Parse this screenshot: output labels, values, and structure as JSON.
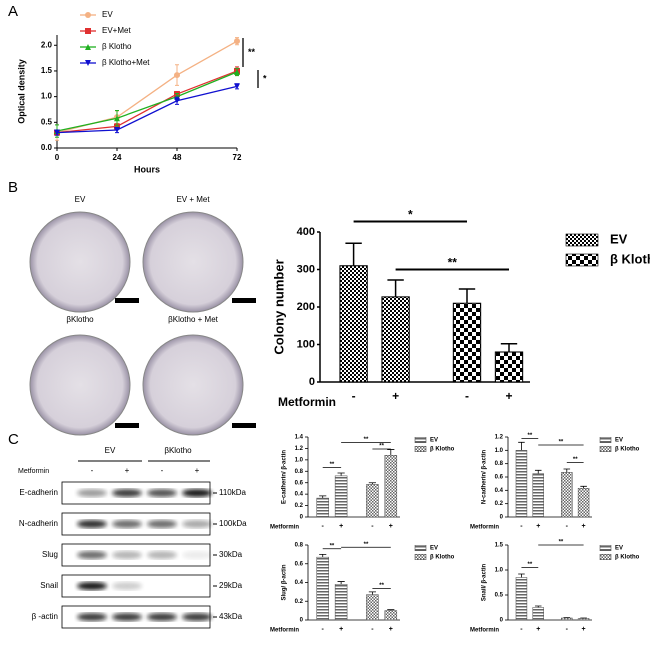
{
  "panel_labels": [
    "A",
    "B",
    "C"
  ],
  "images": [
    "EV",
    "EV + Met",
    "βKlotho",
    "βKlotho + Met"
  ],
  "blot": {
    "groups": [
      "EV",
      "βKlotho"
    ],
    "treatment_label": "Metformin",
    "lanes": [
      "-",
      "+",
      "-",
      "+"
    ],
    "rows": [
      {
        "name": "E-cadherin",
        "size": "110kDa"
      },
      {
        "name": "N-cadherin",
        "size": "100kDa"
      },
      {
        "name": "Slug",
        "size": "30kDa"
      },
      {
        "name": "Snail",
        "size": "29kDa"
      },
      {
        "name": "β -actin",
        "size": "43kDa"
      }
    ]
  },
  "chart_data": [
    {
      "type": "line",
      "x_label": "Hours",
      "y_label": "Optical density",
      "x": [
        0,
        24,
        48,
        72
      ],
      "xlim": [
        0,
        72
      ],
      "xticks": [
        0,
        24,
        48,
        72
      ],
      "ylim": [
        0,
        2.2
      ],
      "yticks": [
        {
          "value": 0,
          "label": "0.0"
        },
        {
          "value": 0.5,
          "label": "0.5"
        },
        {
          "value": 1,
          "label": "1.0"
        },
        {
          "value": 1.5,
          "label": "1.5"
        },
        {
          "value": 2,
          "label": "2.0"
        }
      ],
      "annotations": [
        "**",
        "*"
      ],
      "series": [
        {
          "name": "EV",
          "color": "#f4b183",
          "marker": "circle",
          "values": [
            0.3,
            0.6,
            1.42,
            2.08
          ],
          "errors": [
            0.15,
            0.12,
            0.2,
            0.07
          ]
        },
        {
          "name": "EV+Met",
          "color": "#e03030",
          "marker": "square",
          "values": [
            0.3,
            0.42,
            1.05,
            1.5
          ],
          "errors": [
            0.05,
            0.05,
            0.05,
            0.08
          ]
        },
        {
          "name": "β Klotho",
          "color": "#20b020",
          "marker": "triangle",
          "values": [
            0.33,
            0.58,
            1.0,
            1.48
          ],
          "errors": [
            0.12,
            0.15,
            0.06,
            0.07
          ]
        },
        {
          "name": "β Klotho+Met",
          "color": "#1010d0",
          "marker": "triangle-down",
          "values": [
            0.3,
            0.35,
            0.92,
            1.2
          ],
          "errors": [
            0.05,
            0.05,
            0.07,
            0.05
          ]
        }
      ]
    },
    {
      "type": "bar",
      "y_label": "Colony number",
      "x_label": "Metformin",
      "categories": [
        "-",
        "+",
        "-",
        "+"
      ],
      "ylim": [
        0,
        400
      ],
      "yticks": [
        0,
        100,
        200,
        300,
        400
      ],
      "annotations": [
        "*",
        "**"
      ],
      "series": [
        {
          "name": "EV",
          "color": "#000000",
          "pattern": "fine",
          "values": [
            310,
            227,
            null,
            null
          ],
          "errors": [
            60,
            45,
            null,
            null
          ]
        },
        {
          "name": "β Klotho",
          "color": "#000000",
          "pattern": "coarse",
          "values": [
            null,
            null,
            210,
            80
          ],
          "errors": [
            null,
            null,
            38,
            22
          ]
        }
      ]
    },
    {
      "type": "bar",
      "y_label": "E-cadherin/ β-actin",
      "x_label": "Metformin",
      "categories": [
        "-",
        "+",
        "-",
        "+"
      ],
      "ylim": [
        0,
        1.4
      ],
      "yticks": [
        0,
        0.2,
        0.4,
        0.6,
        0.8,
        {
          "value": 1,
          "label": "1.0"
        },
        1.2,
        1.4
      ],
      "annotations": [
        "**",
        "**",
        "**"
      ],
      "series": [
        {
          "name": "EV",
          "color": "#555555",
          "pattern": "stripes",
          "values": [
            0.33,
            0.72,
            null,
            null
          ],
          "errors": [
            0.04,
            0.05,
            null,
            null
          ]
        },
        {
          "name": "β Klotho",
          "color": "#555555",
          "pattern": "small",
          "values": [
            null,
            null,
            0.57,
            1.08
          ],
          "errors": [
            null,
            null,
            0.03,
            0.1
          ]
        }
      ]
    },
    {
      "type": "bar",
      "y_label": "N-cadherin/ β-actin",
      "x_label": "Metformin",
      "categories": [
        "-",
        "+",
        "-",
        "+"
      ],
      "ylim": [
        0,
        1.2
      ],
      "yticks": [
        0,
        0.2,
        0.4,
        0.6,
        0.8,
        {
          "value": 1,
          "label": "1.0"
        },
        1.2
      ],
      "annotations": [
        "**",
        "**",
        "**"
      ],
      "series": [
        {
          "name": "EV",
          "color": "#555555",
          "pattern": "stripes",
          "values": [
            1.0,
            0.65,
            null,
            null
          ],
          "errors": [
            0.12,
            0.05,
            null,
            null
          ]
        },
        {
          "name": "β Klotho",
          "color": "#555555",
          "pattern": "small",
          "values": [
            null,
            null,
            0.67,
            0.43
          ],
          "errors": [
            null,
            null,
            0.05,
            0.03
          ]
        }
      ]
    },
    {
      "type": "bar",
      "y_label": "Slug/ β-actin",
      "x_label": "Metformin",
      "categories": [
        "-",
        "+",
        "-",
        "+"
      ],
      "ylim": [
        0,
        0.8
      ],
      "yticks": [
        0,
        0.2,
        0.4,
        0.6,
        0.8
      ],
      "annotations": [
        "**",
        "**",
        "**"
      ],
      "series": [
        {
          "name": "EV",
          "color": "#555555",
          "pattern": "stripes",
          "values": [
            0.67,
            0.38,
            null,
            null
          ],
          "errors": [
            0.03,
            0.03,
            null,
            null
          ]
        },
        {
          "name": "β Klotho",
          "color": "#555555",
          "pattern": "small",
          "values": [
            null,
            null,
            0.27,
            0.1
          ],
          "errors": [
            null,
            null,
            0.03,
            0.01
          ]
        }
      ]
    },
    {
      "type": "bar",
      "y_label": "Snail/ β-actin",
      "x_label": "Metformin",
      "categories": [
        "-",
        "+",
        "-",
        "+"
      ],
      "ylim": [
        0,
        1.5
      ],
      "yticks": [
        0,
        0.5,
        {
          "value": 1,
          "label": "1.0"
        },
        1.5
      ],
      "annotations": [
        "**",
        "**"
      ],
      "series": [
        {
          "name": "EV",
          "color": "#555555",
          "pattern": "stripes",
          "values": [
            0.85,
            0.25,
            null,
            null
          ],
          "errors": [
            0.07,
            0.03,
            null,
            null
          ]
        },
        {
          "name": "β Klotho",
          "color": "#555555",
          "pattern": "small",
          "values": [
            null,
            null,
            0.04,
            0.03
          ],
          "errors": [
            null,
            null,
            0.01,
            0.01
          ]
        }
      ]
    }
  ]
}
